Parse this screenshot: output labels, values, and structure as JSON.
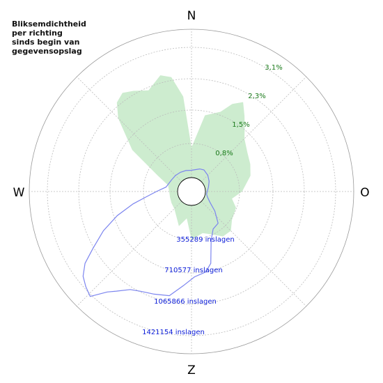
{
  "title_lines": [
    "Bliksemdichtheid",
    "per richting",
    "sinds begin van",
    "gegevensopslag"
  ],
  "colors": {
    "density_fill": "#cdeccf",
    "density_label": "#1a7a1a",
    "strikes_line": "#7b84ef",
    "strikes_label": "#0a1bd8",
    "grid": "#bbbbbb",
    "center_ring": "#000000"
  },
  "chart_data": {
    "type": "polar",
    "compass": [
      "N",
      "O",
      "Z",
      "W"
    ],
    "density_ring_labels": [
      "0,8%",
      "1,5%",
      "2,3%",
      "3,1%"
    ],
    "strikes_ring_labels": [
      "355289 inslagen",
      "710577 inslagen",
      "1065866 inslagen",
      "1421154 inslagen"
    ],
    "rings_max": 4,
    "series": [
      {
        "kind": "density_percent",
        "points_deg_value": [
          [
            0,
            0.72
          ],
          [
            10,
            1.52
          ],
          [
            20,
            1.7
          ],
          [
            25,
            1.98
          ],
          [
            30,
            2.14
          ],
          [
            35,
            1.88
          ],
          [
            40,
            1.65
          ],
          [
            45,
            1.46
          ],
          [
            55,
            1.3
          ],
          [
            65,
            1.22
          ],
          [
            75,
            1.13
          ],
          [
            90,
            0.88
          ],
          [
            100,
            0.65
          ],
          [
            110,
            0.8
          ],
          [
            125,
            0.85
          ],
          [
            135,
            1.0
          ],
          [
            145,
            0.98
          ],
          [
            155,
            0.8
          ],
          [
            165,
            0.7
          ],
          [
            180,
            0.82
          ],
          [
            190,
            0.32
          ],
          [
            200,
            0.55
          ],
          [
            210,
            0.38
          ],
          [
            225,
            0.25
          ],
          [
            240,
            0.22
          ],
          [
            255,
            0.2
          ],
          [
            270,
            0.2
          ],
          [
            285,
            0.25
          ],
          [
            295,
            0.55
          ],
          [
            305,
            1.4
          ],
          [
            315,
            2.15
          ],
          [
            320,
            2.45
          ],
          [
            325,
            2.55
          ],
          [
            330,
            2.45
          ],
          [
            337,
            2.3
          ],
          [
            345,
            2.55
          ],
          [
            350,
            2.45
          ],
          [
            355,
            1.95
          ]
        ]
      },
      {
        "kind": "strikes_count",
        "points_deg_value": [
          [
            0,
            80000
          ],
          [
            10,
            90000
          ],
          [
            20,
            110000
          ],
          [
            30,
            120000
          ],
          [
            45,
            100000
          ],
          [
            60,
            70000
          ],
          [
            75,
            40000
          ],
          [
            90,
            20000
          ],
          [
            100,
            15000
          ],
          [
            110,
            35000
          ],
          [
            120,
            80000
          ],
          [
            130,
            180000
          ],
          [
            140,
            300000
          ],
          [
            150,
            320000
          ],
          [
            158,
            420000
          ],
          [
            165,
            660000
          ],
          [
            170,
            740000
          ],
          [
            178,
            780000
          ],
          [
            185,
            880000
          ],
          [
            192,
            1010000
          ],
          [
            200,
            1040000
          ],
          [
            207,
            1070000
          ],
          [
            212,
            1110000
          ],
          [
            217,
            1210000
          ],
          [
            220,
            1280000
          ],
          [
            224,
            1440000
          ],
          [
            228,
            1400000
          ],
          [
            232,
            1350000
          ],
          [
            236,
            1250000
          ],
          [
            240,
            1090000
          ],
          [
            246,
            900000
          ],
          [
            252,
            700000
          ],
          [
            258,
            500000
          ],
          [
            263,
            350000
          ],
          [
            270,
            230000
          ],
          [
            280,
            130000
          ],
          [
            290,
            110000
          ],
          [
            300,
            100000
          ],
          [
            315,
            95000
          ],
          [
            330,
            90000
          ],
          [
            345,
            85000
          ]
        ]
      }
    ]
  }
}
